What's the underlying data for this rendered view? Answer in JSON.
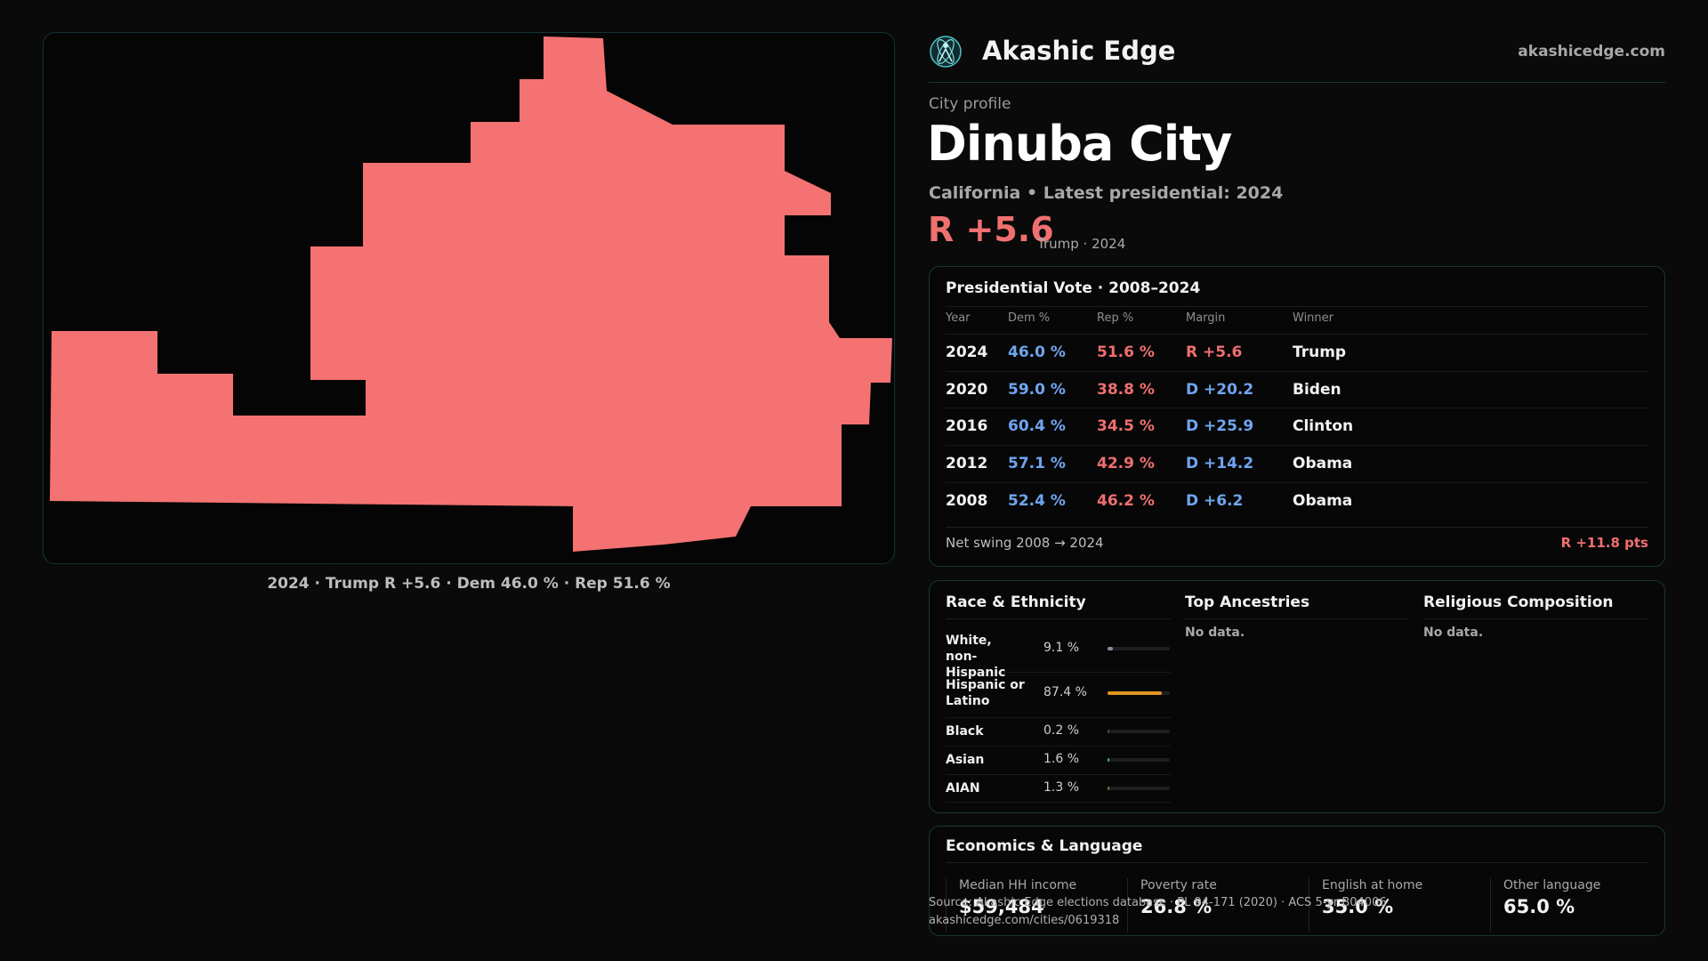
{
  "map": {
    "caption": "2024 · Trump R +5.6 · Dem 46.0 % · Rep 51.6 %",
    "fill_color": "#f47272"
  },
  "header": {
    "brand": "Akashic Edge",
    "site": "akashicedge.com",
    "logo_icon": "atom-globe-icon"
  },
  "profile": {
    "kicker": "City profile",
    "city": "Dinuba City",
    "subline": "California • Latest presidential: 2024",
    "margin": "R +5.6",
    "margin_note": "Trump · 2024"
  },
  "vote_table": {
    "title": "Presidential Vote · 2008–2024",
    "columns": [
      "Year",
      "Dem %",
      "Rep %",
      "Margin",
      "Winner"
    ],
    "rows": [
      {
        "year": "2024",
        "dem": "46.0 %",
        "rep": "51.6 %",
        "margin": "R +5.6",
        "winner": "Trump",
        "party": "R"
      },
      {
        "year": "2020",
        "dem": "59.0 %",
        "rep": "38.8 %",
        "margin": "D +20.2",
        "winner": "Biden",
        "party": "D"
      },
      {
        "year": "2016",
        "dem": "60.4 %",
        "rep": "34.5 %",
        "margin": "D +25.9",
        "winner": "Clinton",
        "party": "D"
      },
      {
        "year": "2012",
        "dem": "57.1 %",
        "rep": "42.9 %",
        "margin": "D +14.2",
        "winner": "Obama",
        "party": "D"
      },
      {
        "year": "2008",
        "dem": "52.4 %",
        "rep": "46.2 %",
        "margin": "D +6.2",
        "winner": "Obama",
        "party": "D"
      }
    ],
    "swing_label": "Net swing 2008 → 2024",
    "swing_value": "R +11.8 pts",
    "dem_color": "#6fa5ef",
    "rep_color": "#ef6f6f"
  },
  "demographics": {
    "race_title": "Race & Ethnicity",
    "race": [
      {
        "label": "White, non-Hispanic",
        "pct": "9.1 %",
        "value": 9.1,
        "color": "#8a8aa0"
      },
      {
        "label": "Hispanic or Latino",
        "pct": "87.4 %",
        "value": 87.4,
        "color": "#e0961f"
      },
      {
        "label": "Black",
        "pct": "0.2 %",
        "value": 0.2,
        "color": "#4a4a4a"
      },
      {
        "label": "Asian",
        "pct": "1.6 %",
        "value": 1.6,
        "color": "#3aa890"
      },
      {
        "label": "AIAN",
        "pct": "1.3 %",
        "value": 1.3,
        "color": "#8a6a3a"
      }
    ],
    "ancestry_title": "Top Ancestries",
    "ancestry_empty": "No data.",
    "religion_title": "Religious Composition",
    "religion_empty": "No data."
  },
  "economics": {
    "title": "Economics & Language",
    "stats": [
      {
        "label": "Median HH income",
        "value": "$59,484"
      },
      {
        "label": "Poverty rate",
        "value": "26.8 %"
      },
      {
        "label": "English at home",
        "value": "35.0 %"
      },
      {
        "label": "Other language",
        "value": "65.0 %"
      }
    ]
  },
  "source": {
    "line1": "Source: Akashic Edge elections database · PL 94-171 (2020) · ACS 5-yr B04006",
    "line2": "akashicedge.com/cities/0619318"
  }
}
